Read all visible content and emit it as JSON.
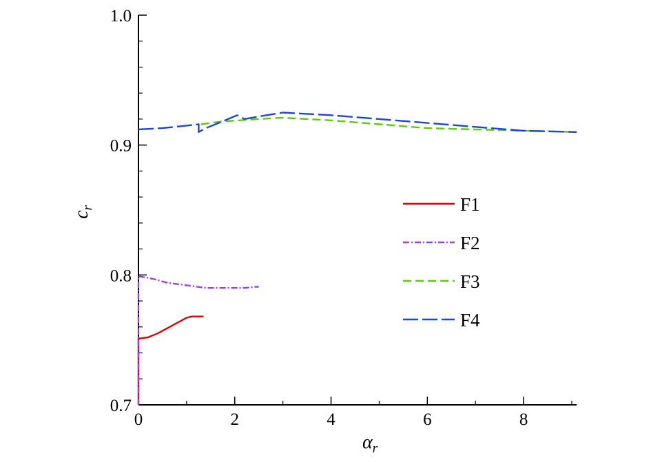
{
  "chart_data": {
    "type": "line",
    "title": "",
    "xlabel_symbol": "α",
    "xlabel_sub": "r",
    "ylabel_symbol": "c",
    "ylabel_sub": "r",
    "xlim": [
      0,
      9.1
    ],
    "ylim": [
      0.7,
      1.0
    ],
    "xticks": [
      0,
      2,
      4,
      6,
      8
    ],
    "yticks": [
      0.7,
      0.8,
      0.9,
      1.0
    ],
    "xtick_labels": [
      "0",
      "2",
      "4",
      "6",
      "8"
    ],
    "ytick_labels": [
      "0.7",
      "0.8",
      "0.9",
      "1.0"
    ],
    "grid": false,
    "legend_position": "right",
    "series": [
      {
        "name": "F1",
        "color": "#e00000",
        "dash": "solid",
        "x": [
          0.0,
          0.0,
          0.2,
          0.4,
          0.6,
          0.8,
          1.0,
          1.1,
          1.2,
          1.35
        ],
        "y": [
          0.7,
          0.751,
          0.752,
          0.755,
          0.759,
          0.763,
          0.767,
          0.768,
          0.768,
          0.768
        ]
      },
      {
        "name": "F2",
        "color": "#9b3df0",
        "dash": "dashdot",
        "x": [
          0.0,
          0.0,
          0.3,
          0.6,
          1.0,
          1.4,
          1.8,
          2.2,
          2.5
        ],
        "y": [
          0.7,
          0.799,
          0.797,
          0.794,
          0.792,
          0.79,
          0.79,
          0.79,
          0.791
        ]
      },
      {
        "name": "F3",
        "color": "#55d000",
        "dash": "dash",
        "x": [
          1.3,
          1.7,
          2.1,
          2.5,
          3.0,
          3.5,
          4.0,
          5.0,
          6.0,
          7.0,
          8.0,
          9.1
        ],
        "y": [
          0.916,
          0.918,
          0.919,
          0.92,
          0.921,
          0.92,
          0.919,
          0.916,
          0.913,
          0.912,
          0.911,
          0.91
        ]
      },
      {
        "name": "F4",
        "color": "#1a44e0",
        "dash": "longdash",
        "x": [
          0.0,
          0.5,
          1.0,
          1.25,
          1.25,
          1.4,
          1.8,
          2.05,
          2.2,
          2.5,
          3.0,
          3.5,
          4.0,
          5.0,
          6.0,
          7.0,
          8.0,
          9.1
        ],
        "y": [
          0.912,
          0.913,
          0.915,
          0.916,
          0.91,
          0.913,
          0.919,
          0.923,
          0.92,
          0.922,
          0.925,
          0.924,
          0.923,
          0.92,
          0.917,
          0.914,
          0.911,
          0.91
        ]
      }
    ]
  }
}
